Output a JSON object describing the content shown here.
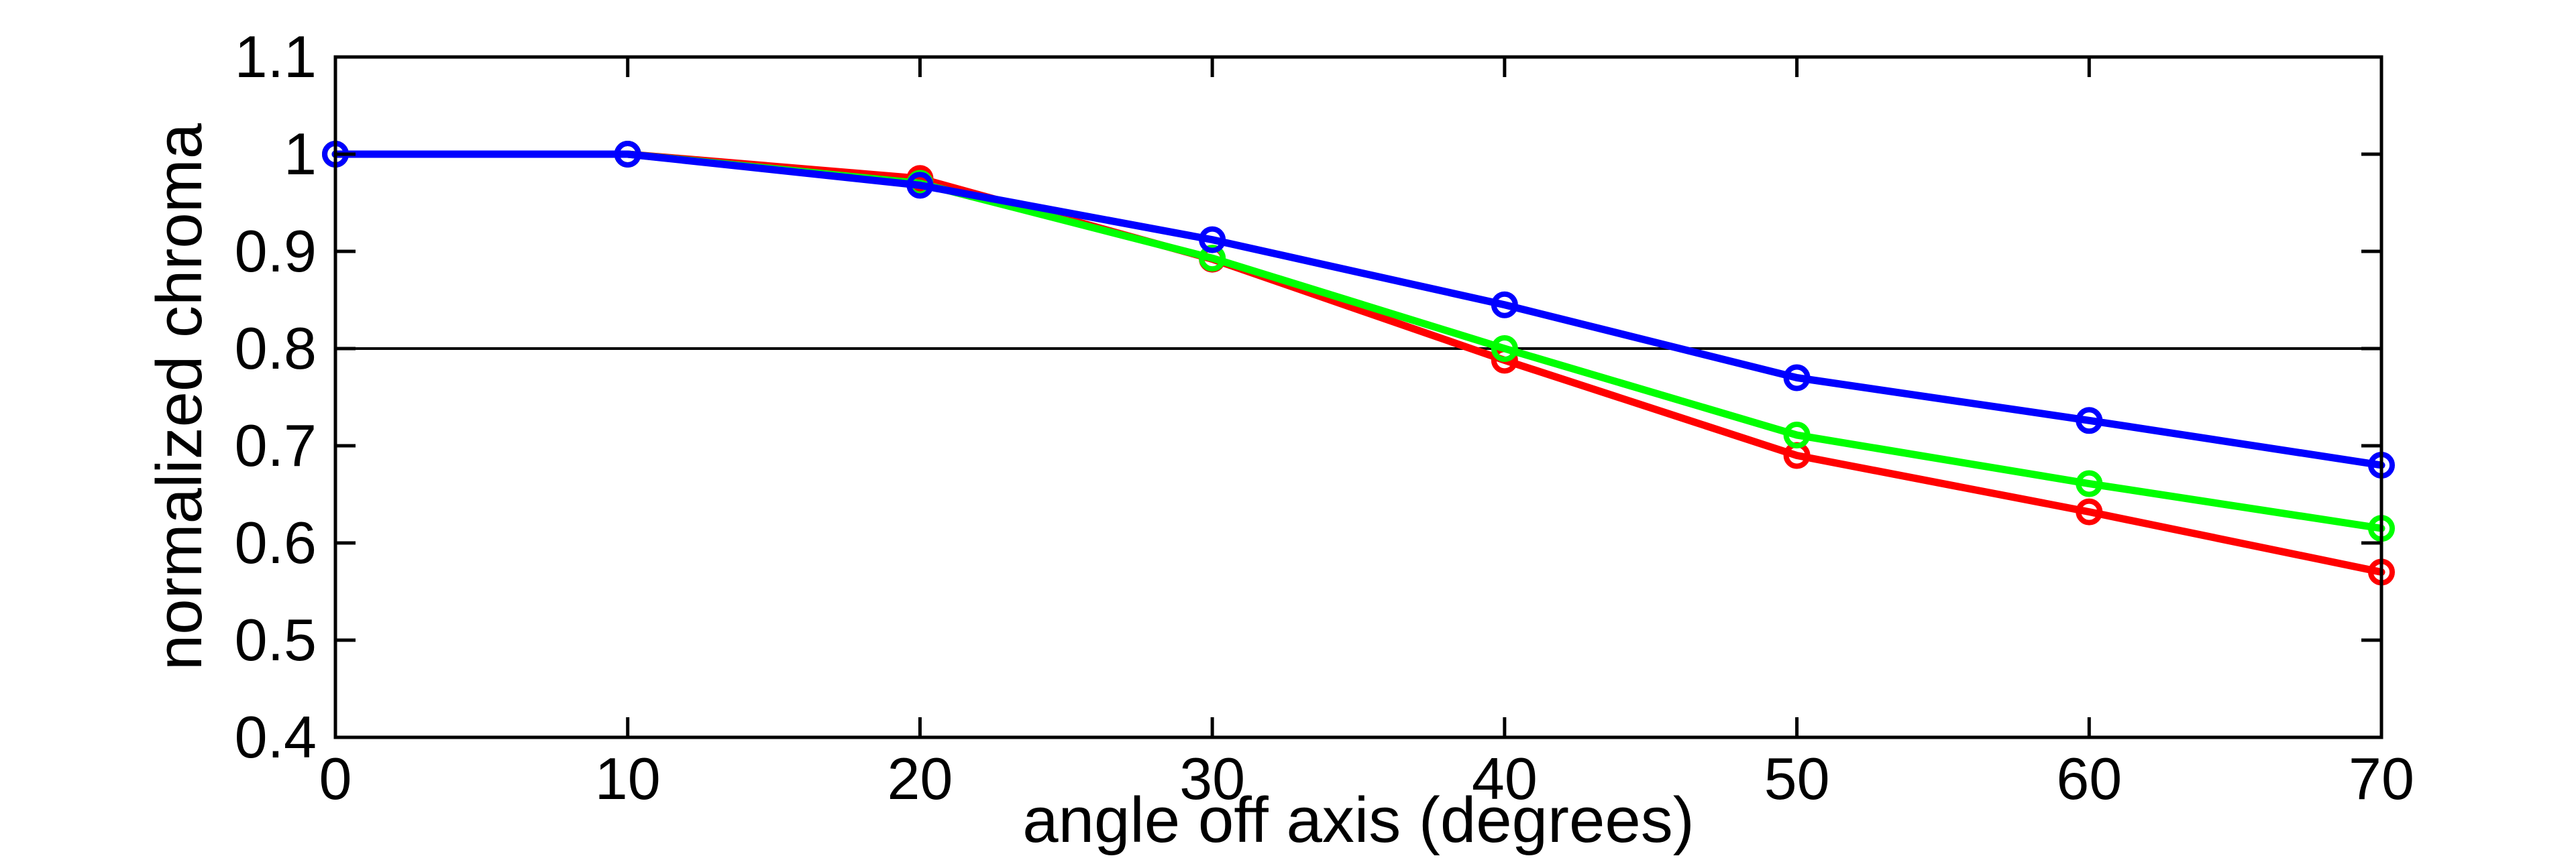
{
  "chart_data": {
    "type": "line",
    "title": "",
    "xlabel": "angle off axis (degrees)",
    "ylabel": "normalized chroma",
    "xlim": [
      0,
      70
    ],
    "ylim": [
      0.4,
      1.1
    ],
    "xticks": [
      0,
      10,
      20,
      30,
      40,
      50,
      60,
      70
    ],
    "yticks": [
      0.4,
      0.5,
      0.6,
      0.7,
      0.8,
      0.9,
      1,
      1.1
    ],
    "grid": false,
    "legend": "none",
    "marker": "open-circle",
    "x": [
      0,
      10,
      20,
      30,
      40,
      50,
      60,
      70
    ],
    "series": [
      {
        "name": "red",
        "color": "#ff0000",
        "values": [
          1.0,
          1.0,
          0.975,
          0.892,
          0.788,
          0.69,
          0.632,
          0.57
        ]
      },
      {
        "name": "green",
        "color": "#00ff00",
        "values": [
          1.0,
          1.0,
          0.97,
          0.893,
          0.8,
          0.711,
          0.661,
          0.615
        ]
      },
      {
        "name": "blue",
        "color": "#0000ff",
        "values": [
          1.0,
          1.0,
          0.968,
          0.912,
          0.845,
          0.77,
          0.726,
          0.68
        ]
      }
    ],
    "reference_line": {
      "y": 0.8,
      "color": "#000000"
    },
    "axis_color": "#000000",
    "background_color": "#ffffff"
  }
}
